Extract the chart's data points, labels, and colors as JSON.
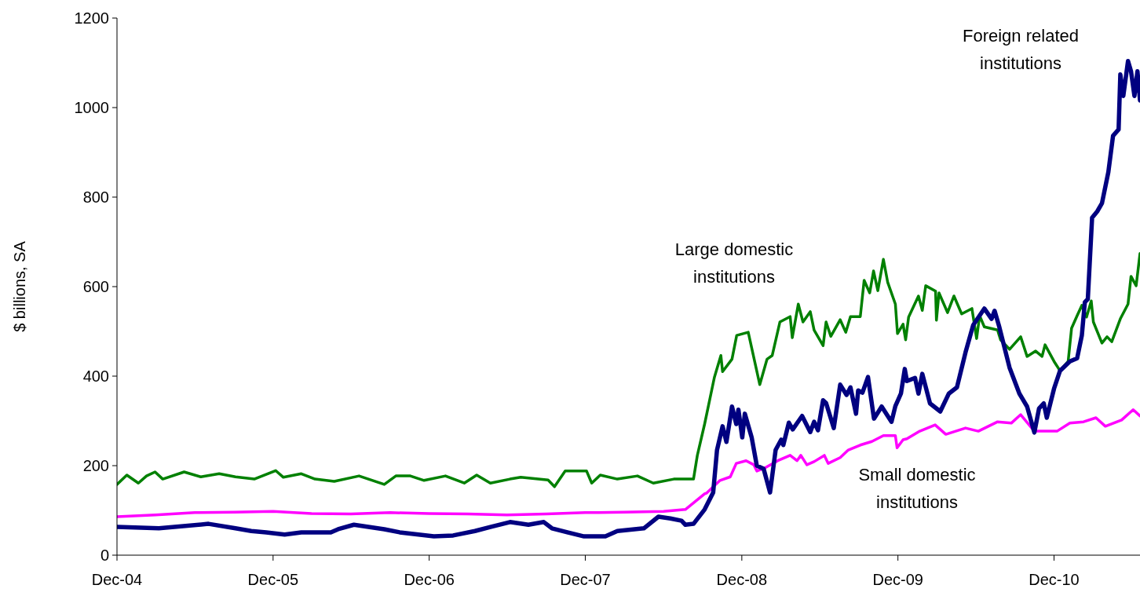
{
  "chart_data": {
    "type": "line",
    "ylabel": "$ billions, SA",
    "ylim": [
      0,
      1200
    ],
    "yticks": [
      0,
      200,
      400,
      600,
      800,
      1000,
      1200
    ],
    "xlim": [
      "2004-12-01",
      "2011-06-20"
    ],
    "xticks": [
      {
        "value": "2004-12-01",
        "label": "Dec-04"
      },
      {
        "value": "2005-12-01",
        "label": "Dec-05"
      },
      {
        "value": "2006-12-01",
        "label": "Dec-06"
      },
      {
        "value": "2007-12-01",
        "label": "Dec-07"
      },
      {
        "value": "2008-12-01",
        "label": "Dec-08"
      },
      {
        "value": "2009-12-01",
        "label": "Dec-09"
      },
      {
        "value": "2010-12-01",
        "label": "Dec-10"
      }
    ],
    "grid": false,
    "marker": "none",
    "line_style": "solid",
    "series": [
      {
        "name": "Large domestic institutions",
        "color": "#008000",
        "x": [
          "2004-12-01",
          "2004-12-24",
          "2005-01-20",
          "2005-02-08",
          "2005-02-28",
          "2005-03-18",
          "2005-05-07",
          "2005-06-15",
          "2005-07-28",
          "2005-09-04",
          "2005-10-18",
          "2005-12-07",
          "2005-12-25",
          "2006-02-05",
          "2006-03-09",
          "2006-04-23",
          "2006-06-20",
          "2006-08-18",
          "2006-09-14",
          "2006-10-18",
          "2006-11-19",
          "2007-01-08",
          "2007-02-21",
          "2007-03-22",
          "2007-04-23",
          "2007-06-08",
          "2007-07-03",
          "2007-09-05",
          "2007-09-20",
          "2007-10-15",
          "2007-12-04",
          "2007-12-16",
          "2008-01-05",
          "2008-02-14",
          "2008-04-01",
          "2008-05-08",
          "2008-06-25",
          "2008-08-01",
          "2008-08-10",
          "2008-08-19",
          "2008-09-05",
          "2008-09-28",
          "2008-10-13",
          "2008-10-17",
          "2008-11-08",
          "2008-11-19",
          "2008-12-16",
          "2009-01-12",
          "2009-01-29",
          "2009-02-10",
          "2009-02-28",
          "2009-03-24",
          "2009-03-29",
          "2009-04-12",
          "2009-04-23",
          "2009-05-10",
          "2009-05-19",
          "2009-06-09",
          "2009-06-16",
          "2009-06-27",
          "2009-07-19",
          "2009-08-01",
          "2009-08-12",
          "2009-09-04",
          "2009-09-13",
          "2009-09-26",
          "2009-10-05",
          "2009-10-15",
          "2009-10-28",
          "2009-11-07",
          "2009-11-25",
          "2009-11-30",
          "2009-12-13",
          "2009-12-19",
          "2009-12-26",
          "2010-01-18",
          "2010-01-27",
          "2010-02-04",
          "2010-02-27",
          "2010-03-01",
          "2010-03-07",
          "2010-03-27",
          "2010-04-11",
          "2010-04-29",
          "2010-05-23",
          "2010-06-03",
          "2010-06-10",
          "2010-06-21",
          "2010-07-22",
          "2010-07-29",
          "2010-08-19",
          "2010-09-14",
          "2010-09-29",
          "2010-10-19",
          "2010-11-03",
          "2010-11-10",
          "2010-12-01",
          "2010-12-15",
          "2011-01-03",
          "2011-01-11",
          "2011-01-24",
          "2011-02-04",
          "2011-02-15",
          "2011-02-26",
          "2011-03-03",
          "2011-03-23",
          "2011-04-04",
          "2011-04-15",
          "2011-05-05",
          "2011-05-23",
          "2011-05-30",
          "2011-06-11",
          "2011-06-20"
        ],
        "values": [
          158,
          179,
          161,
          177,
          186,
          170,
          186,
          175,
          182,
          175,
          170,
          189,
          174,
          182,
          170,
          165,
          177,
          158,
          177,
          177,
          167,
          177,
          161,
          179,
          161,
          170,
          174,
          168,
          153,
          188,
          188,
          161,
          179,
          170,
          177,
          161,
          170,
          170,
          170,
          223,
          293,
          398,
          446,
          410,
          438,
          491,
          498,
          381,
          438,
          446,
          521,
          533,
          486,
          561,
          521,
          544,
          503,
          468,
          521,
          489,
          526,
          498,
          533,
          533,
          614,
          586,
          635,
          591,
          661,
          610,
          561,
          495,
          516,
          481,
          532,
          579,
          547,
          602,
          590,
          525,
          586,
          542,
          579,
          539,
          551,
          484,
          535,
          510,
          503,
          481,
          460,
          488,
          444,
          456,
          444,
          470,
          433,
          412,
          433,
          507,
          535,
          558,
          532,
          568,
          521,
          474,
          488,
          477,
          528,
          561,
          623,
          602,
          674
        ]
      },
      {
        "name": "Small domestic institutions",
        "color": "#ff00ff",
        "x": [
          "2004-12-01",
          "2005-03-01",
          "2005-06-01",
          "2005-09-01",
          "2005-12-01",
          "2006-03-01",
          "2006-06-01",
          "2006-09-01",
          "2006-12-01",
          "2007-03-01",
          "2007-06-01",
          "2007-09-01",
          "2007-12-01",
          "2008-03-01",
          "2008-06-01",
          "2008-07-22",
          "2008-09-05",
          "2008-09-10",
          "2008-10-11",
          "2008-11-04",
          "2008-11-18",
          "2008-12-11",
          "2008-12-29",
          "2009-01-05",
          "2009-01-26",
          "2009-02-23",
          "2009-03-24",
          "2009-04-09",
          "2009-04-18",
          "2009-05-02",
          "2009-05-19",
          "2009-06-12",
          "2009-06-21",
          "2009-07-19",
          "2009-08-07",
          "2009-09-04",
          "2009-10-01",
          "2009-10-28",
          "2009-11-25",
          "2009-11-29",
          "2009-12-13",
          "2009-12-22",
          "2010-01-21",
          "2010-02-26",
          "2010-03-23",
          "2010-05-08",
          "2010-06-07",
          "2010-07-22",
          "2010-08-23",
          "2010-09-14",
          "2010-10-16",
          "2010-12-08",
          "2011-01-07",
          "2011-02-08",
          "2011-03-09",
          "2011-03-31",
          "2011-05-08",
          "2011-06-04",
          "2011-06-20"
        ],
        "values": [
          86,
          90,
          95,
          96,
          98,
          93,
          92,
          95,
          93,
          92,
          90,
          92,
          95,
          96,
          98,
          102,
          137,
          139,
          167,
          175,
          205,
          211,
          202,
          188,
          196,
          211,
          223,
          211,
          223,
          202,
          209,
          223,
          205,
          218,
          235,
          246,
          254,
          267,
          267,
          240,
          258,
          260,
          277,
          291,
          270,
          284,
          277,
          298,
          295,
          314,
          277,
          277,
          295,
          298,
          307,
          288,
          302,
          325,
          311
        ]
      },
      {
        "name": "Foreign related institutions",
        "color": "#000080",
        "x": [
          "2004-12-01",
          "2005-03-09",
          "2005-07-03",
          "2005-09-04",
          "2005-10-11",
          "2005-11-15",
          "2005-12-28",
          "2006-02-05",
          "2006-04-15",
          "2006-05-02",
          "2006-06-08",
          "2006-08-18",
          "2006-09-23",
          "2006-12-12",
          "2007-01-26",
          "2007-03-18",
          "2007-04-23",
          "2007-06-08",
          "2007-07-21",
          "2007-08-26",
          "2007-09-14",
          "2007-10-20",
          "2007-11-28",
          "2008-01-17",
          "2008-02-14",
          "2008-04-16",
          "2008-05-20",
          "2008-06-17",
          "2008-07-13",
          "2008-07-22",
          "2008-08-10",
          "2008-09-05",
          "2008-09-25",
          "2008-10-04",
          "2008-10-17",
          "2008-10-26",
          "2008-11-08",
          "2008-11-18",
          "2008-11-23",
          "2008-12-02",
          "2008-12-08",
          "2008-12-24",
          "2009-01-05",
          "2009-01-21",
          "2009-02-05",
          "2009-02-18",
          "2009-03-03",
          "2009-03-08",
          "2009-03-21",
          "2009-03-30",
          "2009-04-21",
          "2009-05-10",
          "2009-05-19",
          "2009-05-28",
          "2009-06-09",
          "2009-06-16",
          "2009-07-04",
          "2009-07-19",
          "2009-08-03",
          "2009-08-12",
          "2009-08-25",
          "2009-08-30",
          "2009-09-09",
          "2009-09-22",
          "2009-10-06",
          "2009-10-24",
          "2009-11-16",
          "2009-11-25",
          "2009-12-08",
          "2009-12-17",
          "2009-12-22",
          "2010-01-10",
          "2010-01-18",
          "2010-01-27",
          "2010-02-14",
          "2010-03-10",
          "2010-03-30",
          "2010-04-18",
          "2010-05-08",
          "2010-05-26",
          "2010-06-21",
          "2010-07-08",
          "2010-07-15",
          "2010-07-26",
          "2010-08-19",
          "2010-09-11",
          "2010-09-29",
          "2010-10-16",
          "2010-10-27",
          "2010-11-07",
          "2010-11-14",
          "2010-12-01",
          "2010-12-15",
          "2011-01-07",
          "2011-01-24",
          "2011-02-04",
          "2011-02-11",
          "2011-02-18",
          "2011-02-28",
          "2011-03-12",
          "2011-03-23",
          "2011-04-07",
          "2011-04-18",
          "2011-05-01",
          "2011-05-05",
          "2011-05-12",
          "2011-05-23",
          "2011-05-30",
          "2011-06-07",
          "2011-06-14",
          "2011-06-20"
        ],
        "values": [
          63,
          60,
          70,
          60,
          54,
          51,
          46,
          51,
          51,
          58,
          68,
          58,
          51,
          42,
          44,
          54,
          63,
          74,
          68,
          74,
          60,
          51,
          42,
          42,
          54,
          60,
          86,
          82,
          77,
          68,
          70,
          102,
          140,
          235,
          288,
          253,
          332,
          293,
          325,
          263,
          316,
          263,
          200,
          193,
          140,
          235,
          258,
          246,
          296,
          281,
          311,
          275,
          298,
          279,
          346,
          340,
          284,
          381,
          358,
          375,
          316,
          368,
          363,
          398,
          305,
          332,
          298,
          333,
          361,
          416,
          389,
          396,
          361,
          405,
          339,
          321,
          361,
          375,
          453,
          514,
          551,
          528,
          546,
          510,
          419,
          361,
          332,
          274,
          328,
          339,
          307,
          372,
          412,
          433,
          440,
          491,
          565,
          572,
          754,
          768,
          786,
          856,
          937,
          951,
          1074,
          1026,
          1104,
          1081,
          1026,
          1081,
          1016
        ]
      }
    ]
  }
}
